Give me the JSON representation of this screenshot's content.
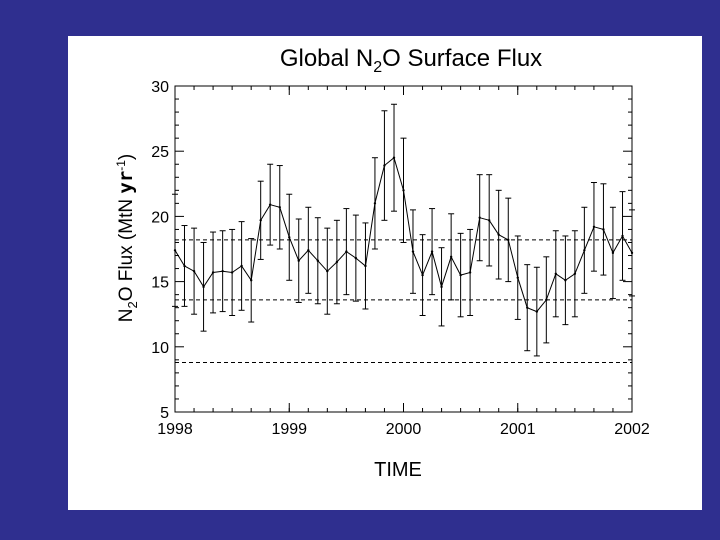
{
  "colors": {
    "background": "#2f2f8f",
    "panel": "#ffffff",
    "ink": "#000000"
  },
  "chart_data": {
    "type": "line",
    "title": {
      "prefix": "Global N",
      "subscript": "2",
      "suffix": "O Surface Flux"
    },
    "xlabel": "TIME",
    "ylabel": {
      "a": "N",
      "sub": "2",
      "b": "O Flux (MtN ",
      "c": "yr",
      "sup": "-1",
      "d": ")"
    },
    "xlim": [
      1998,
      2002
    ],
    "ylim": [
      5,
      30
    ],
    "xticks": [
      1998,
      1999,
      2000,
      2001,
      2002
    ],
    "xtick_labels": [
      "1998",
      "1999",
      "2000",
      "2001",
      "2002"
    ],
    "yticks": [
      5,
      10,
      15,
      20,
      25,
      30
    ],
    "ytick_labels": [
      "5",
      "10",
      "15",
      "20",
      "25",
      "30"
    ],
    "grid": false,
    "error_bars": true,
    "reference_lines": [
      {
        "y": 18.2,
        "style": "dashed"
      },
      {
        "y": 13.6,
        "style": "dashed"
      },
      {
        "y": 8.8,
        "style": "dashed"
      }
    ],
    "series": [
      {
        "x": [
          1998.0,
          1998.083,
          1998.167,
          1998.25,
          1998.333,
          1998.417,
          1998.5,
          1998.583,
          1998.667,
          1998.75,
          1998.833,
          1998.917,
          1999.0,
          1999.083,
          1999.167,
          1999.25,
          1999.333,
          1999.417,
          1999.5,
          1999.583,
          1999.667,
          1999.75,
          1999.833,
          1999.917,
          2000.0,
          2000.083,
          2000.167,
          2000.25,
          2000.333,
          2000.417,
          2000.5,
          2000.583,
          2000.667,
          2000.75,
          2000.833,
          2000.917,
          2001.0,
          2001.083,
          2001.167,
          2001.25,
          2001.333,
          2001.417,
          2001.5,
          2001.583,
          2001.667,
          2001.75,
          2001.833,
          2001.917,
          2002.0
        ],
        "y": [
          17.4,
          16.2,
          15.8,
          14.6,
          15.7,
          15.8,
          15.7,
          16.2,
          15.1,
          19.7,
          20.9,
          20.7,
          18.4,
          16.6,
          17.4,
          16.6,
          15.8,
          16.5,
          17.3,
          16.8,
          16.2,
          21.0,
          23.9,
          24.5,
          22.0,
          17.3,
          15.5,
          17.3,
          14.6,
          16.9,
          15.5,
          15.7,
          19.9,
          19.7,
          18.6,
          18.2,
          15.3,
          13.0,
          12.7,
          13.6,
          15.6,
          15.1,
          15.6,
          17.4,
          19.2,
          19.0,
          17.2,
          18.5,
          17.2
        ],
        "errors": [
          4.3,
          3.1,
          3.3,
          3.4,
          3.1,
          3.1,
          3.3,
          3.4,
          3.2,
          3.0,
          3.1,
          3.2,
          3.3,
          3.2,
          3.3,
          3.3,
          3.3,
          3.2,
          3.3,
          3.3,
          3.3,
          3.5,
          4.2,
          4.1,
          4.0,
          3.2,
          3.1,
          3.3,
          3.0,
          3.3,
          3.2,
          3.3,
          3.3,
          3.5,
          3.4,
          3.2,
          3.2,
          3.3,
          3.4,
          3.3,
          3.3,
          3.4,
          3.3,
          3.3,
          3.4,
          3.5,
          3.5,
          3.4,
          3.3
        ]
      }
    ]
  }
}
